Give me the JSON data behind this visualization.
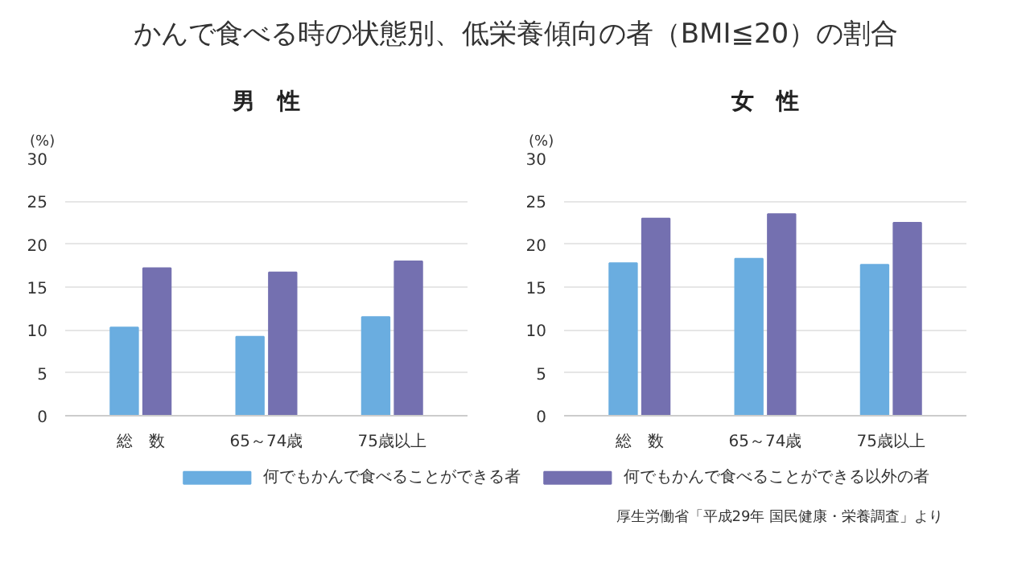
{
  "chart_data": [
    {
      "type": "bar",
      "title": "かんで食べる時の状態別、低栄養傾向の者（BMI≦20）の割合",
      "subtitle": "男　性",
      "ylabel": "(%)",
      "categories": [
        "総　数",
        "65～74歳",
        "75歳以上"
      ],
      "series": [
        {
          "name": "何でもかんで食べることができる者",
          "color": "#6aade0",
          "values": [
            10.3,
            9.2,
            11.5
          ]
        },
        {
          "name": "何でもかんで食べることができる以外の者",
          "color": "#7470b0",
          "values": [
            17.2,
            16.7,
            18.0
          ]
        }
      ],
      "ylim": [
        0,
        30
      ],
      "yticks": [
        0,
        5,
        10,
        15,
        20,
        25,
        30
      ],
      "grid": "y",
      "legend": "bottom"
    },
    {
      "type": "bar",
      "subtitle": "女　性",
      "ylabel": "(%)",
      "categories": [
        "総　数",
        "65～74歳",
        "75歳以上"
      ],
      "series": [
        {
          "name": "何でもかんで食べることができる者",
          "color": "#6aade0",
          "values": [
            17.8,
            18.3,
            17.6
          ]
        },
        {
          "name": "何でもかんで食べることができる以外の者",
          "color": "#7470b0",
          "values": [
            23.0,
            23.5,
            22.5
          ]
        }
      ],
      "ylim": [
        0,
        30
      ],
      "yticks": [
        0,
        5,
        10,
        15,
        20,
        25,
        30
      ],
      "grid": "y",
      "legend": "bottom",
      "annotations": [
        "厚生労働省「平成29年 国民健康・栄養調査」より"
      ]
    }
  ]
}
